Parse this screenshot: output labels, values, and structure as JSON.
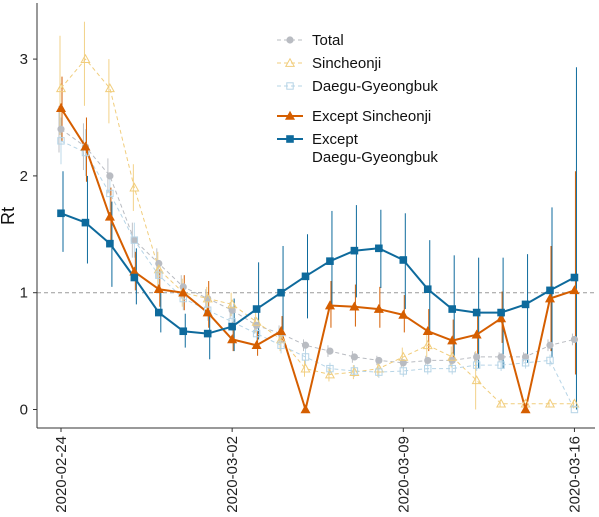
{
  "chart_data": {
    "type": "line",
    "title": "",
    "xlabel": "",
    "ylabel": "Rt",
    "x": [
      "2020-02-24",
      "2020-02-25",
      "2020-02-26",
      "2020-02-27",
      "2020-02-28",
      "2020-02-29",
      "2020-03-01",
      "2020-03-02",
      "2020-03-03",
      "2020-03-04",
      "2020-03-05",
      "2020-03-06",
      "2020-03-07",
      "2020-03-08",
      "2020-03-09",
      "2020-03-10",
      "2020-03-11",
      "2020-03-12",
      "2020-03-13",
      "2020-03-14",
      "2020-03-15",
      "2020-03-16"
    ],
    "x_ticks": [
      "2020-02-24",
      "2020-03-02",
      "2020-03-09",
      "2020-03-16"
    ],
    "y_ticks": [
      0,
      1,
      2,
      3
    ],
    "ylim": [
      -0.18,
      3.5
    ],
    "reference_line": 1,
    "grid": false,
    "legend_position": "top-right",
    "series": [
      {
        "name": "Total",
        "style": "dashed",
        "marker": "circle",
        "color": "#b9bcc2",
        "values": [
          2.4,
          2.25,
          2.0,
          1.45,
          1.25,
          1.05,
          0.95,
          0.85,
          0.72,
          0.65,
          0.55,
          0.5,
          0.45,
          0.42,
          0.4,
          0.42,
          0.42,
          0.45,
          0.45,
          0.45,
          0.55,
          0.6
        ],
        "lower": [
          2.2,
          2.05,
          1.85,
          1.3,
          1.12,
          0.95,
          0.87,
          0.78,
          0.65,
          0.58,
          0.5,
          0.45,
          0.4,
          0.38,
          0.36,
          0.38,
          0.38,
          0.41,
          0.41,
          0.41,
          0.5,
          0.55
        ],
        "upper": [
          2.6,
          2.45,
          2.15,
          1.6,
          1.38,
          1.15,
          1.03,
          0.92,
          0.79,
          0.72,
          0.6,
          0.55,
          0.5,
          0.46,
          0.44,
          0.46,
          0.46,
          0.49,
          0.49,
          0.49,
          0.6,
          0.65
        ]
      },
      {
        "name": "Sincheonji",
        "style": "dashed",
        "marker": "triangle-open",
        "color": "#f1cd7c",
        "values": [
          2.75,
          3.0,
          2.75,
          1.9,
          1.2,
          1.0,
          0.95,
          0.9,
          0.75,
          0.6,
          0.35,
          0.3,
          0.32,
          0.35,
          0.45,
          0.55,
          0.45,
          0.25,
          0.05,
          0.05,
          0.05,
          0.05
        ],
        "lower": [
          2.35,
          2.6,
          2.45,
          1.7,
          1.05,
          0.88,
          0.85,
          0.8,
          0.66,
          0.5,
          0.28,
          0.24,
          0.26,
          0.28,
          0.37,
          0.45,
          0.36,
          0.0,
          0.02,
          0.02,
          0.02,
          0.02
        ],
        "upper": [
          3.2,
          3.32,
          3.0,
          2.1,
          1.35,
          1.12,
          1.05,
          1.0,
          0.84,
          0.7,
          0.42,
          0.36,
          0.38,
          0.42,
          0.53,
          0.65,
          0.54,
          0.5,
          0.08,
          0.08,
          0.08,
          0.08
        ]
      },
      {
        "name": "Daegu-Gyeongbuk",
        "style": "dashed",
        "marker": "square-open",
        "color": "#b6d4e6",
        "values": [
          2.3,
          2.2,
          1.85,
          1.45,
          1.15,
          0.95,
          0.85,
          0.75,
          0.65,
          0.55,
          0.45,
          0.35,
          0.33,
          0.32,
          0.33,
          0.35,
          0.35,
          0.38,
          0.38,
          0.4,
          0.42,
          0.0
        ],
        "lower": [
          2.1,
          2.0,
          1.7,
          1.3,
          1.02,
          0.85,
          0.76,
          0.67,
          0.57,
          0.48,
          0.38,
          0.3,
          0.28,
          0.27,
          0.28,
          0.3,
          0.3,
          0.33,
          0.33,
          0.35,
          0.37,
          0.0
        ],
        "upper": [
          2.5,
          2.4,
          2.0,
          1.6,
          1.28,
          1.05,
          0.94,
          0.83,
          0.73,
          0.62,
          0.52,
          0.4,
          0.38,
          0.37,
          0.38,
          0.4,
          0.4,
          0.43,
          0.43,
          0.45,
          0.47,
          0.0
        ]
      },
      {
        "name": "Except Sincheonji",
        "style": "solid",
        "marker": "triangle",
        "color": "#d55e00",
        "values": [
          2.58,
          2.25,
          1.65,
          1.18,
          1.03,
          1.0,
          0.83,
          0.6,
          0.55,
          0.67,
          0.0,
          0.89,
          0.88,
          0.86,
          0.81,
          0.67,
          0.59,
          0.64,
          0.78,
          0.0,
          0.95,
          1.02
        ],
        "lower": [
          2.3,
          1.95,
          1.45,
          1.02,
          0.88,
          0.85,
          0.7,
          0.5,
          0.46,
          0.57,
          0.0,
          0.7,
          0.71,
          0.7,
          0.66,
          0.5,
          0.43,
          0.45,
          0.57,
          0.0,
          0.5,
          0.3
        ],
        "upper": [
          2.85,
          2.5,
          1.9,
          1.35,
          1.2,
          1.15,
          1.1,
          0.75,
          0.67,
          0.8,
          0.0,
          1.1,
          1.07,
          1.05,
          0.98,
          0.86,
          0.77,
          0.85,
          1.01,
          0.0,
          1.4,
          2.04
        ]
      },
      {
        "name": "Except\nDaegu-Gyeongbuk",
        "style": "solid",
        "marker": "square",
        "color": "#0e6a9c",
        "values": [
          1.68,
          1.6,
          1.42,
          1.13,
          0.83,
          0.67,
          0.65,
          0.71,
          0.86,
          1.0,
          1.14,
          1.27,
          1.36,
          1.38,
          1.28,
          1.03,
          0.86,
          0.83,
          0.83,
          0.9,
          1.02,
          1.13
        ],
        "lower": [
          1.35,
          1.25,
          1.05,
          0.9,
          0.66,
          0.53,
          0.43,
          0.5,
          0.6,
          0.66,
          0.78,
          0.88,
          0.96,
          1.04,
          0.86,
          0.65,
          0.4,
          0.35,
          0.35,
          0.4,
          0.45,
          0.0
        ],
        "upper": [
          2.04,
          2.0,
          1.78,
          1.38,
          1.02,
          0.82,
          0.85,
          0.95,
          1.26,
          1.4,
          1.5,
          1.7,
          1.75,
          1.71,
          1.68,
          1.45,
          1.32,
          1.3,
          1.3,
          1.33,
          1.73,
          2.93
        ]
      }
    ]
  }
}
